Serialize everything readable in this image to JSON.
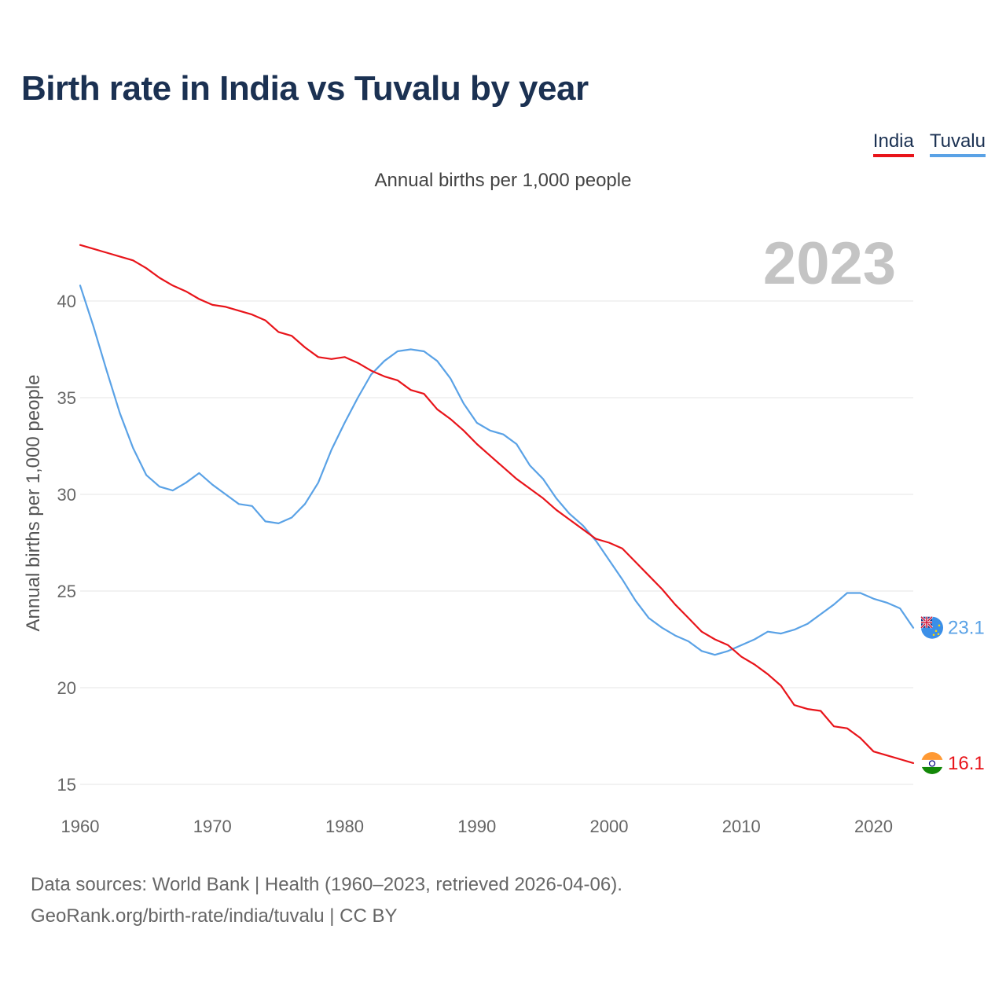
{
  "title": "Birth rate in India vs Tuvalu by year",
  "subtitle": "Annual births per 1,000 people",
  "year_label": "2023",
  "legend": [
    {
      "name": "India",
      "color": "#e8141a"
    },
    {
      "name": "Tuvalu",
      "color": "#5aa2e6"
    }
  ],
  "footer": {
    "sources": "Data sources: World Bank | Health (1960–2023, retrieved 2026-04-06).",
    "credit": "GeoRank.org/birth-rate/india/tuvalu | CC BY"
  },
  "chart_data": {
    "type": "line",
    "title": "Birth rate in India vs Tuvalu by year",
    "ylabel": "Annual births per 1,000 people",
    "xlabel": "",
    "xlim": [
      1960,
      2023
    ],
    "ylim": [
      15,
      43
    ],
    "x_ticks": [
      1960,
      1970,
      1980,
      1990,
      2000,
      2010,
      2020
    ],
    "y_ticks": [
      15,
      20,
      25,
      30,
      35,
      40
    ],
    "grid": true,
    "x": [
      1960,
      1961,
      1962,
      1963,
      1964,
      1965,
      1966,
      1967,
      1968,
      1969,
      1970,
      1971,
      1972,
      1973,
      1974,
      1975,
      1976,
      1977,
      1978,
      1979,
      1980,
      1981,
      1982,
      1983,
      1984,
      1985,
      1986,
      1987,
      1988,
      1989,
      1990,
      1991,
      1992,
      1993,
      1994,
      1995,
      1996,
      1997,
      1998,
      1999,
      2000,
      2001,
      2002,
      2003,
      2004,
      2005,
      2006,
      2007,
      2008,
      2009,
      2010,
      2011,
      2012,
      2013,
      2014,
      2015,
      2016,
      2017,
      2018,
      2019,
      2020,
      2021,
      2022,
      2023
    ],
    "series": [
      {
        "name": "India",
        "color": "#e8141a",
        "end_label": "16.1",
        "values": [
          42.9,
          42.7,
          42.5,
          42.3,
          42.1,
          41.7,
          41.2,
          40.8,
          40.5,
          40.1,
          39.8,
          39.7,
          39.5,
          39.3,
          39.0,
          38.4,
          38.2,
          37.6,
          37.1,
          37.0,
          37.1,
          36.8,
          36.4,
          36.1,
          35.9,
          35.4,
          35.2,
          34.4,
          33.9,
          33.3,
          32.6,
          32.0,
          31.4,
          30.8,
          30.3,
          29.8,
          29.2,
          28.7,
          28.2,
          27.7,
          27.5,
          27.2,
          26.5,
          25.8,
          25.1,
          24.3,
          23.6,
          22.9,
          22.5,
          22.2,
          21.6,
          21.2,
          20.7,
          20.1,
          19.1,
          18.9,
          18.8,
          18.0,
          17.9,
          17.4,
          16.7,
          16.5,
          16.3,
          16.1
        ]
      },
      {
        "name": "Tuvalu",
        "color": "#5aa2e6",
        "end_label": "23.1",
        "values": [
          40.8,
          38.7,
          36.4,
          34.2,
          32.4,
          31.0,
          30.4,
          30.2,
          30.6,
          31.1,
          30.5,
          30.0,
          29.5,
          29.4,
          28.6,
          28.5,
          28.8,
          29.5,
          30.6,
          32.3,
          33.7,
          35.0,
          36.2,
          36.9,
          37.4,
          37.5,
          37.4,
          36.9,
          36.0,
          34.7,
          33.7,
          33.3,
          33.1,
          32.6,
          31.5,
          30.8,
          29.8,
          29.0,
          28.4,
          27.6,
          26.6,
          25.6,
          24.5,
          23.6,
          23.1,
          22.7,
          22.4,
          21.9,
          21.7,
          21.9,
          22.2,
          22.5,
          22.9,
          22.8,
          23.0,
          23.3,
          23.8,
          24.3,
          24.9,
          24.9,
          24.6,
          24.4,
          24.1,
          23.1
        ]
      }
    ]
  }
}
